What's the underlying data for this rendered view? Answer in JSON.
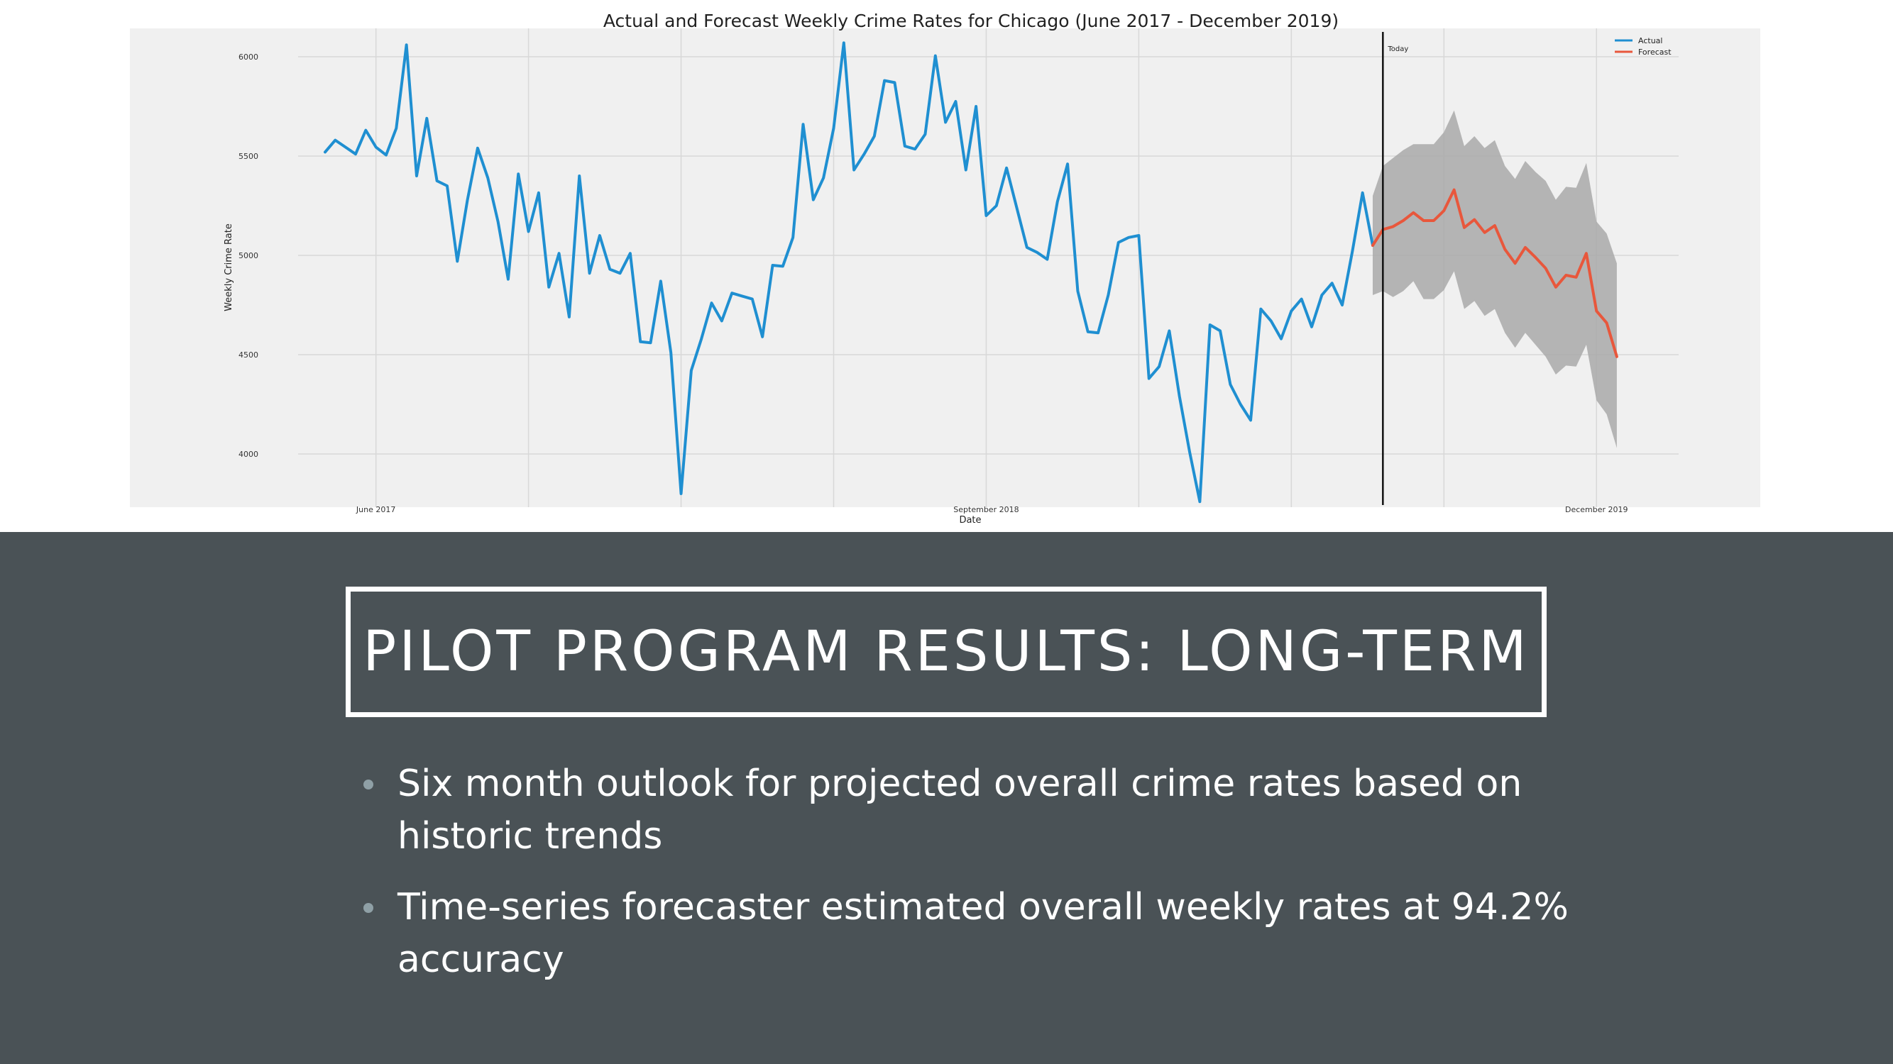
{
  "slide": {
    "title": "PILOT PROGRAM RESULTS: LONG-TERM",
    "bullets": [
      "Six month outlook for projected overall crime rates based on historic trends",
      "Time-series forecaster estimated overall weekly rates at 94.2% accuracy"
    ]
  },
  "colors": {
    "actual": "#1f8fd1",
    "forecast": "#e8573c",
    "interval": "#a9a9a9",
    "plot_bg": "#f0f0f0",
    "slide_bg": "#4a5256"
  },
  "chart_data": {
    "type": "line",
    "title": "Actual and Forecast Weekly Crime Rates for Chicago (June 2017 - December 2019)",
    "xlabel": "Date",
    "ylabel": "Weekly Crime Rate",
    "ylim": [
      3750,
      6150
    ],
    "yticks": [
      4000,
      4500,
      5000,
      5500,
      6000
    ],
    "xticks": [
      {
        "label": "June 2017",
        "week": 5
      },
      {
        "label": "September 2018",
        "week": 65
      },
      {
        "label": "December 2019",
        "week": 125
      }
    ],
    "grid": true,
    "legend_position": "top-right",
    "today_marker": {
      "label": "Today",
      "week": 104
    },
    "series": [
      {
        "name": "Actual",
        "x_start_week": 0,
        "values": [
          5520,
          5580,
          5545,
          5510,
          5630,
          5545,
          5505,
          5640,
          6060,
          5400,
          5690,
          5375,
          5350,
          4970,
          5280,
          5540,
          5390,
          5170,
          4880,
          5410,
          5120,
          5315,
          4840,
          5010,
          4690,
          5400,
          4910,
          5100,
          4930,
          4910,
          5010,
          4565,
          4560,
          4870,
          4510,
          3800,
          4420,
          4580,
          4760,
          4670,
          4810,
          4795,
          4780,
          4590,
          4950,
          4945,
          5090,
          5660,
          5280,
          5390,
          5640,
          6070,
          5430,
          5510,
          5600,
          5880,
          5870,
          5550,
          5535,
          5610,
          6005,
          5670,
          5775,
          5430,
          5750,
          5200,
          5250,
          5440,
          5240,
          5040,
          5015,
          4980,
          5270,
          5460,
          4820,
          4615,
          4610,
          4800,
          5065,
          5090,
          5100,
          4380,
          4440,
          4620,
          4290,
          4010,
          3760,
          4650,
          4620,
          4350,
          4250,
          4170,
          4730,
          4670,
          4580,
          4720,
          4780,
          4640,
          4800,
          4860,
          4750,
          5020,
          5315,
          5050
        ]
      },
      {
        "name": "Forecast",
        "x_start_week": 103,
        "values": [
          5050,
          5130,
          5145,
          5175,
          5215,
          5175,
          5175,
          5225,
          5330,
          5140,
          5180,
          5115,
          5150,
          5030,
          4960,
          5040,
          4990,
          4935,
          4840,
          4900,
          4890,
          5010,
          4720,
          4660,
          4490
        ],
        "lower": [
          4800,
          4820,
          4790,
          4820,
          4870,
          4780,
          4780,
          4825,
          4920,
          4730,
          4770,
          4695,
          4730,
          4610,
          4535,
          4610,
          4550,
          4490,
          4400,
          4445,
          4440,
          4550,
          4270,
          4200,
          4030
        ],
        "upper": [
          5300,
          5450,
          5490,
          5530,
          5560,
          5560,
          5560,
          5620,
          5730,
          5550,
          5600,
          5540,
          5580,
          5450,
          5385,
          5475,
          5420,
          5375,
          5280,
          5345,
          5340,
          5465,
          5170,
          5110,
          4960
        ]
      }
    ]
  }
}
